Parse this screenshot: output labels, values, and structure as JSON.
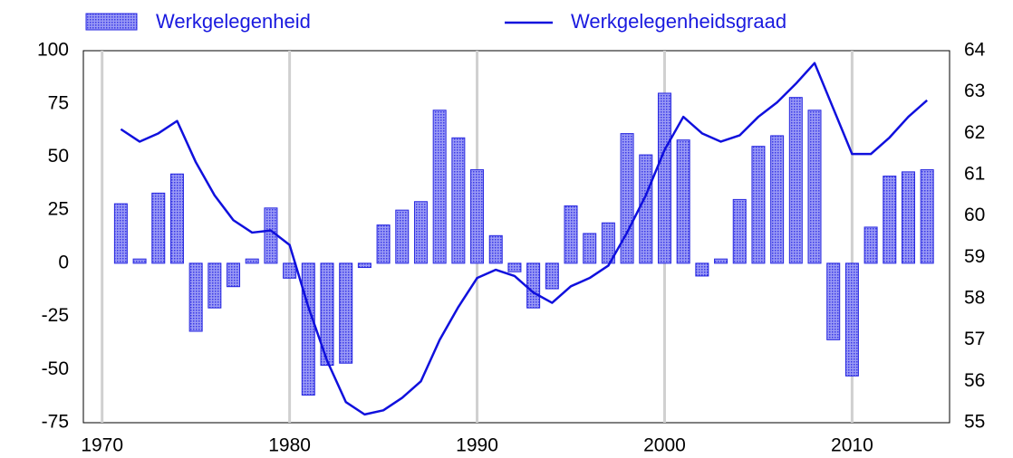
{
  "chart_data": {
    "type": "bar_line",
    "x": [
      1971,
      1972,
      1973,
      1974,
      1975,
      1976,
      1977,
      1978,
      1979,
      1980,
      1981,
      1982,
      1983,
      1984,
      1985,
      1986,
      1987,
      1988,
      1989,
      1990,
      1991,
      1992,
      1993,
      1994,
      1995,
      1996,
      1997,
      1998,
      1999,
      2000,
      2001,
      2002,
      2003,
      2004,
      2005,
      2006,
      2007,
      2008,
      2009,
      2010,
      2011,
      2012,
      2013,
      2014
    ],
    "series": [
      {
        "name": "Werkgelegenheid",
        "type": "bar",
        "color": "#2828e0",
        "values": [
          28,
          2,
          33,
          42,
          -32,
          -21,
          -11,
          2,
          26,
          -7,
          -62,
          -48,
          -47,
          -2,
          18,
          25,
          29,
          72,
          59,
          44,
          13,
          -4,
          -21,
          -12,
          27,
          14,
          19,
          61,
          51,
          80,
          58,
          -6,
          2,
          30,
          55,
          60,
          78,
          72,
          -36,
          -53,
          17,
          41,
          43,
          44
        ]
      },
      {
        "name": "Werkgelegenheidsgraad",
        "type": "line",
        "axis": "y2",
        "color": "#1010dd",
        "values": [
          62.1,
          61.8,
          62.0,
          62.3,
          61.3,
          60.5,
          59.9,
          59.6,
          59.65,
          59.3,
          57.8,
          56.5,
          55.5,
          55.2,
          55.3,
          55.6,
          56.0,
          57.0,
          57.8,
          58.5,
          58.7,
          58.55,
          58.15,
          57.9,
          58.3,
          58.5,
          58.8,
          59.6,
          60.5,
          61.6,
          62.4,
          62.0,
          61.8,
          61.95,
          62.4,
          62.75,
          63.2,
          63.7,
          62.6,
          61.5,
          61.5,
          61.9,
          62.4,
          62.8
        ]
      }
    ],
    "xlim": [
      1969,
      2015.2
    ],
    "xticks": [
      1970,
      1980,
      1990,
      2000,
      2010
    ],
    "ylim": [
      -75,
      100
    ],
    "yticks": [
      -75,
      -50,
      -25,
      0,
      25,
      50,
      75,
      100
    ],
    "y2lim": [
      55,
      64
    ],
    "y2ticks": [
      55,
      56,
      57,
      58,
      59,
      60,
      61,
      62,
      63,
      64
    ],
    "grid": "x"
  }
}
